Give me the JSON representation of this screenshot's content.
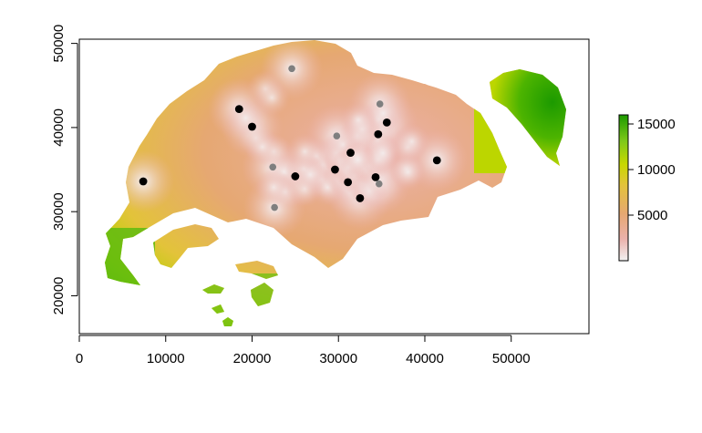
{
  "chart_data": {
    "type": "heatmap",
    "title": "",
    "xlabel": "",
    "ylabel": "",
    "xlim": [
      0,
      59000
    ],
    "ylim": [
      15500,
      50500
    ],
    "x_ticks": [
      0,
      10000,
      20000,
      30000,
      40000,
      50000
    ],
    "x_tick_labels": [
      "0",
      "10000",
      "20000",
      "30000",
      "40000",
      "50000"
    ],
    "y_ticks": [
      20000,
      30000,
      40000,
      50000
    ],
    "y_tick_labels": [
      "20000",
      "30000",
      "40000",
      "50000"
    ],
    "grid": false,
    "legend": {
      "placement": "right",
      "range": [
        0,
        16000
      ],
      "ticks": [
        5000,
        10000,
        15000
      ],
      "tick_labels": [
        "5000",
        "10000",
        "15000"
      ],
      "colors": [
        "#f2f2f2",
        "#ebb1ab",
        "#e6a872",
        "#e3c33a",
        "#c8d800",
        "#7ec81a",
        "#1c9a00"
      ]
    },
    "points_black": [
      [
        18500,
        42200
      ],
      [
        20000,
        40100
      ],
      [
        25000,
        34200
      ],
      [
        29600,
        35000
      ],
      [
        31100,
        33500
      ],
      [
        31400,
        37000
      ],
      [
        32500,
        31600
      ],
      [
        34300,
        34100
      ],
      [
        34600,
        39200
      ],
      [
        35600,
        40600
      ],
      [
        41400,
        36100
      ],
      [
        7400,
        33600
      ]
    ],
    "points_gray": [
      [
        24600,
        47000
      ],
      [
        22400,
        35300
      ],
      [
        22600,
        30500
      ],
      [
        29800,
        39000
      ],
      [
        34800,
        42800
      ],
      [
        34700,
        33300
      ]
    ],
    "point_colors": {
      "black": "#000000",
      "gray": "#7f7f7f"
    }
  }
}
